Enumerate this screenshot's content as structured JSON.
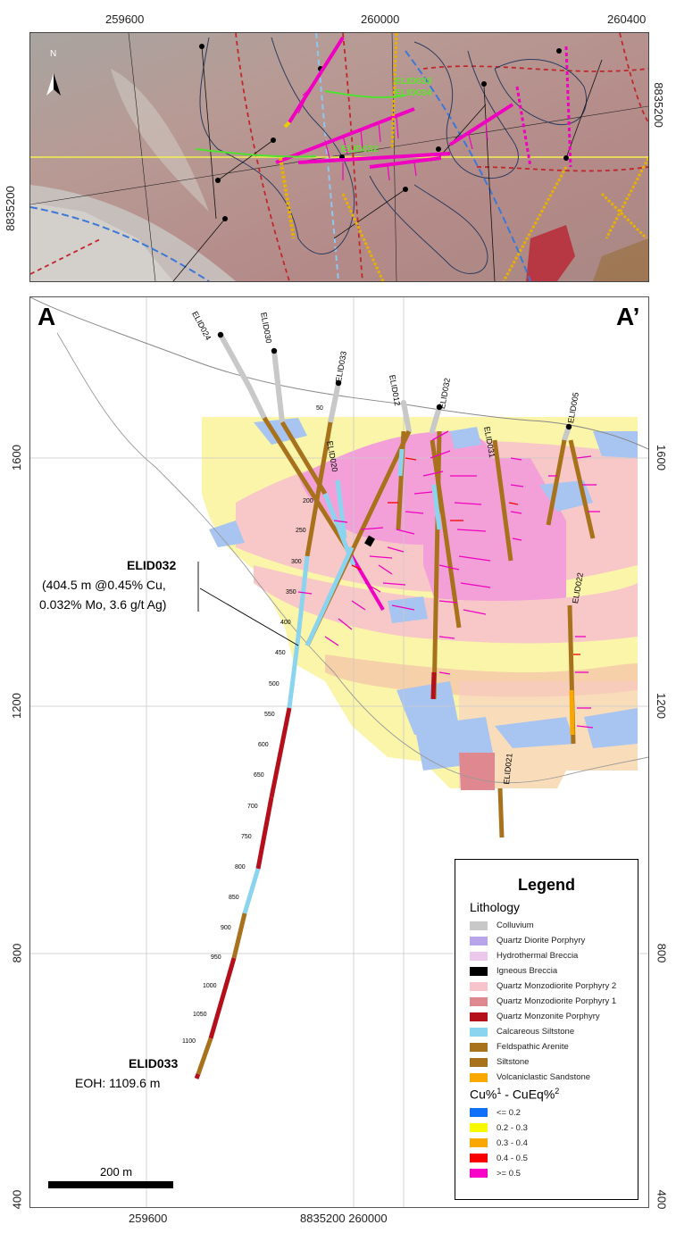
{
  "top_map": {
    "x_ticks": [
      "259600",
      "260000",
      "260400"
    ],
    "y_left": "8835200",
    "y_right": "8835200",
    "drill_labels": [
      "ELID033",
      "ELID034",
      "ELID032"
    ]
  },
  "section": {
    "label_a": "A",
    "label_a_prime": "A’",
    "y_left": [
      "1600",
      "1200",
      "800",
      "400"
    ],
    "y_right": [
      "1600",
      "1200",
      "800",
      "400"
    ],
    "x_bottom": [
      "259600",
      "8835200 260000"
    ],
    "holes": [
      "ELID024",
      "ELID030",
      "ELID033",
      "ELID012",
      "ELID032",
      "ELID005",
      "ELID020",
      "ELID031",
      "ELID022",
      "ELID021"
    ],
    "depth_ticks": [
      "50",
      "200",
      "250",
      "300",
      "350",
      "400",
      "450",
      "500",
      "550",
      "600",
      "650",
      "700",
      "750",
      "800",
      "850",
      "900",
      "950",
      "1000",
      "1050",
      "1100"
    ],
    "callout_title": "ELID032",
    "callout_line1": "(404.5 m @0.45% Cu,",
    "callout_line2": "0.032% Mo, 3.6 g/t Ag)",
    "eoh_title": "ELID033",
    "eoh_text": "EOH: 1109.6 m",
    "scale_label": "200 m"
  },
  "legend": {
    "title": "Legend",
    "lithology_heading": "Lithology",
    "lithology": [
      {
        "label": "Colluvium",
        "color": "#c8c8c8"
      },
      {
        "label": "Quartz Diorite Porphyry",
        "color": "#b8a4e8"
      },
      {
        "label": "Hydrothermal Breccia",
        "color": "#ecc8ec"
      },
      {
        "label": "Igneous Breccia",
        "color": "#000000"
      },
      {
        "label": "Quartz Monzodiorite Porphyry 2",
        "color": "#f8c4cc"
      },
      {
        "label": "Quartz Monzodiorite Porphyry 1",
        "color": "#e08890"
      },
      {
        "label": "Quartz Monzonite Porphyry",
        "color": "#b4101c"
      },
      {
        "label": "Calcareous Siltstone",
        "color": "#8ad4f0"
      },
      {
        "label": "Feldspathic Arenite",
        "color": "#a8721c"
      },
      {
        "label": "Siltstone",
        "color": "#a8721c"
      },
      {
        "label": "Volcaniclastic Sandstone",
        "color": "#f8a800"
      }
    ],
    "grade_heading": "Cu%",
    "grade_sup1": "1",
    "grade_dash": " - CuEq%",
    "grade_sup2": "2",
    "grades": [
      {
        "label": "<= 0.2",
        "color": "#1070f8"
      },
      {
        "label": "0.2 - 0.3",
        "color": "#f8f800"
      },
      {
        "label": "0.3 - 0.4",
        "color": "#f8a800"
      },
      {
        "label": "0.4 - 0.5",
        "color": "#f80000"
      },
      {
        "label": ">= 0.5",
        "color": "#f800c8"
      }
    ]
  }
}
